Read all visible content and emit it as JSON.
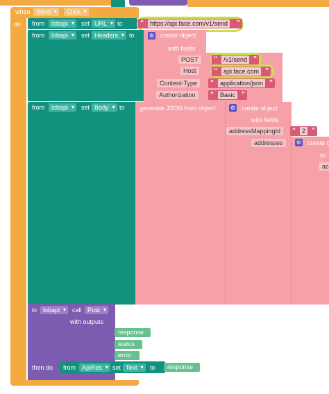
{
  "event": {
    "when": "when",
    "component": "Send",
    "event": "Click",
    "do": "do"
  },
  "common": {
    "from": "from",
    "set": "set",
    "to": "to",
    "in": "in",
    "call": "call",
    "then_do": "then do",
    "with_outputs": "with outputs",
    "with_fields": "with fields",
    "create_object": "create object",
    "generate_json": "generate JSON from object"
  },
  "row_url": {
    "component": "lobapi",
    "property": "URL",
    "value": "https://api.face.com/v1/send"
  },
  "row_headers": {
    "component": "lobapi",
    "property": "Headers",
    "fields": [
      {
        "key": "POST",
        "value": "/v1/send"
      },
      {
        "key": "Host",
        "value": "api.face.com"
      },
      {
        "key": "Content-Type",
        "value": "application/json"
      },
      {
        "key": "Authorization",
        "value": "Basic"
      }
    ]
  },
  "row_body": {
    "component": "lobapi",
    "property": "Body",
    "fields": [
      {
        "key": "addressMappingId",
        "value": "2"
      },
      {
        "key": "addresses",
        "value": "create o"
      }
    ],
    "nested_clip_1": "wi",
    "nested_clip_2": "ac"
  },
  "call_block": {
    "component": "lobapi",
    "method": "Post",
    "outputs": [
      "response",
      "status",
      "error"
    ]
  },
  "then_block": {
    "component": "ApiRes",
    "property": "Text",
    "value": "response"
  },
  "colors": {
    "event": "#f2aa41",
    "teal": "#13917f",
    "pink": "#f6a1a8",
    "purple": "#7d5bb0",
    "green": "#66c08f",
    "string": "#d95a72",
    "highlight": "#c6e24b"
  }
}
